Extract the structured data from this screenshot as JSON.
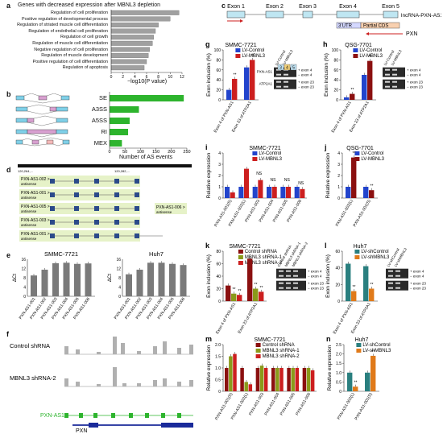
{
  "panel_a": {
    "label": "a",
    "title": "Genes with decreased expression after MBNL3 depletion",
    "xlabel": "−log10(P value)",
    "ticks": [
      "0",
      "2",
      "4",
      "6",
      "8",
      "10",
      "12"
    ],
    "terms": [
      "Regulation of cell proliferation",
      "Positive regulation of developmental process",
      "Regulation of striated muscle cell differentiation",
      "Regulation of endothelial cell proliferation",
      "Regulation of cell growth",
      "Regulation of muscle cell differentiation",
      "Negative regulation of cell proliferation",
      "Regulation of muscle development",
      "Positive regulation of cell differentiation",
      "Regulation of apoptosis"
    ]
  },
  "panel_b": {
    "label": "b",
    "xlabel": "Number of AS events",
    "ticks": [
      "0",
      "50",
      "100",
      "150",
      "200",
      "250"
    ],
    "events": [
      "SE",
      "A3SS",
      "A5SS",
      "RI",
      "MEX"
    ]
  },
  "panel_c": {
    "label": "c",
    "exons": [
      "Exon 1",
      "Exon 2",
      "Exon 3",
      "Exon 4",
      "Exon 5"
    ],
    "lnc": "lncRNA-PXN-AS1",
    "utr": "3’UTR",
    "cds": "Partial CDS",
    "gene": "PXN"
  },
  "panel_d": {
    "label": "d",
    "coords": [
      "120,264,...",
      "120,282,..."
    ],
    "transcripts": [
      "PXN-AS1-002 >",
      "PXN-AS1-001 >",
      "PXN-AS1-005 >",
      "PXN-AS1-003 >",
      "PXN-AS1-001 >"
    ],
    "sub": "antisense",
    "right_transcript": "PXN-AS1-006 >"
  },
  "panel_e": {
    "label": "e",
    "ylabel": "ΔCt",
    "yticks": [
      "0",
      "4",
      "8",
      "12",
      "16"
    ],
    "left_title": "SMMC-7721",
    "right_title": "Huh7",
    "categories": [
      "PXN-AS1-001",
      "PXN-AS1-002",
      "PXN-AS1-003",
      "PXN-AS1-004",
      "PXN-AS1-005",
      "PXN-AS1-006"
    ]
  },
  "panel_f": {
    "label": "f",
    "tracks": [
      "Control shRNA",
      "MBNL3 shRNA-2"
    ],
    "gene_top": "PXN-AS1",
    "gene_bottom": "PXN"
  },
  "panel_g": {
    "label": "g",
    "title": "SMMC-7721",
    "ylabel": "Exon inclusion (%)",
    "yticks": [
      "0",
      "20",
      "40",
      "60",
      "80",
      "100"
    ],
    "legend": [
      "LV-Control",
      "LV-MBNL3"
    ],
    "categories": [
      "Exon 4 of PXN-AS1",
      "Exon 23 of ATP2A1"
    ],
    "gel_cols": [
      "LV-Control",
      "LV-MBNL3"
    ],
    "gel_rows": [
      "PXN-AS1",
      "ATP2A1"
    ],
    "gel_marks": [
      "+ exon 4",
      "− exon 4",
      "+ exon 23",
      "− exon 23"
    ],
    "exon_box": [
      "3",
      "4",
      "5"
    ]
  },
  "panel_h": {
    "label": "h",
    "title": "QSG-7701",
    "ylabel": "Exon inclusion (%)",
    "yticks": [
      "0",
      "20",
      "40",
      "60",
      "80",
      "100"
    ],
    "legend": [
      "LV-Control",
      "LV-MBNL3"
    ],
    "categories": [
      "Exon 4 of PXN-AS1",
      "Exon 23 of ATP2A1"
    ],
    "gel_cols": [
      "LV-Control",
      "LV-MBNL3"
    ],
    "gel_marks": [
      "+ exon 4",
      "− exon 4",
      "+ exon 23",
      "− exon 23"
    ]
  },
  "panel_i": {
    "label": "i",
    "title": "SMMC-7721",
    "ylabel": "Relative expression",
    "yticks": [
      "0",
      "1",
      "2",
      "3",
      "4"
    ],
    "legend": [
      "LV-Control",
      "LV-MBNL3"
    ],
    "categories": [
      "PXN-AS1-001(S)",
      "PXN-AS1-002(L)",
      "PXN-AS1-003",
      "PXN-AS1-004",
      "PXN-AS1-005",
      "PXN-AS1-006"
    ],
    "ns": [
      "NS",
      "NS",
      "NS",
      "NS"
    ]
  },
  "panel_j": {
    "label": "j",
    "title": "QSG-7701",
    "ylabel": "Relative expression",
    "yticks": [
      "0",
      "1",
      "2",
      "3",
      "4"
    ],
    "legend": [
      "LV-Control",
      "LV-MBNL3"
    ],
    "categories": [
      "PXN-AS1-002(L)",
      "PXN-AS1-001(S)"
    ]
  },
  "panel_k": {
    "label": "k",
    "title": "SMMC-7721",
    "ylabel": "Exon inclusion (%)",
    "yticks": [
      "0",
      "20",
      "40",
      "60",
      "80"
    ],
    "legend": [
      "Control shRNA",
      "MBNL3 shRNA-1",
      "MBNL3 shRNA-2"
    ],
    "categories": [
      "Exon 4 of PXN-AS1",
      "Exon 23 of ATP2A1"
    ],
    "gel_cols": [
      "Control shRNA",
      "MBNL3 shRNA-1",
      "MBNL3 shRNA-2"
    ],
    "gel_marks": [
      "+ exon 4",
      "− exon 4",
      "+ exon 23",
      "− exon 23"
    ]
  },
  "panel_l": {
    "label": "l",
    "title": "Huh7",
    "ylabel": "Exon inclusion (%)",
    "yticks": [
      "0",
      "20",
      "40",
      "60"
    ],
    "legend": [
      "LV-shControl",
      "LV-shMBNL3"
    ],
    "categories": [
      "Exon 4 of PXN-AS1",
      "Exon 23 of ATP2A1"
    ],
    "gel_cols": [
      "LV-shControl",
      "LV-shMBNL3"
    ],
    "gel_marks": [
      "+ exon 4",
      "− exon 4",
      "+ exon 23",
      "− exon 23"
    ]
  },
  "panel_m": {
    "label": "m",
    "title": "SMMC-7721",
    "ylabel": "Relative expression",
    "yticks": [
      "0",
      "0.5",
      "1.0",
      "1.5",
      "2.0"
    ],
    "legend": [
      "Control shRNA",
      "MBNL3 shRNA-1",
      "MBNL3 shRNA-2"
    ],
    "categories": [
      "PXN-AS1-001(S)",
      "PXN-AS1-002(L)",
      "PXN-AS1-003",
      "PXN-AS1-004",
      "PXN-AS1-005",
      "PXN-AS1-006"
    ]
  },
  "panel_n": {
    "label": "n",
    "title": "Huh7",
    "ylabel": "Relative expression",
    "yticks": [
      "0",
      "0.5",
      "1.0",
      "1.5",
      "2.0",
      "2.5"
    ],
    "legend": [
      "LV-shControl",
      "LV-shMBNL3"
    ],
    "categories": [
      "PXN-AS1-002(L)",
      "PXN-AS1-001(S)"
    ]
  },
  "colors": {
    "grey_bar": "#a0a0a0",
    "green": "#2db42d",
    "blue": "#2244cc",
    "red": "#cc1f1f",
    "darkred": "#8b1010",
    "olive": "#8a9a1a",
    "teal": "#2a7f7f",
    "orange": "#e07a1a"
  },
  "chart_data": [
    {
      "type": "bar",
      "categories": [
        "Regulation of cell proliferation",
        "Positive regulation of developmental process",
        "Regulation of striated muscle cell differentiation",
        "Regulation of endothelial cell proliferation",
        "Regulation of cell growth",
        "Regulation of muscle cell differentiation",
        "Negative regulation of cell proliferation",
        "Regulation of muscle development",
        "Positive regulation of cell differentiation",
        "Regulation of apoptosis"
      ],
      "values": [
        11.5,
        10,
        8,
        7.5,
        7.2,
        7,
        6.5,
        6.3,
        6,
        5.6
      ],
      "xlim": [
        0,
        12
      ]
    },
    {
      "type": "bar",
      "categories": [
        "SE",
        "A3SS",
        "A5SS",
        "RI",
        "MEX"
      ],
      "values": [
        240,
        95,
        65,
        60,
        40
      ],
      "xlim": [
        0,
        250
      ]
    },
    {
      "type": "bar",
      "categories": [
        "PXN-AS1-001",
        "PXN-AS1-002",
        "PXN-AS1-003",
        "PXN-AS1-004",
        "PXN-AS1-005",
        "PXN-AS1-006"
      ],
      "series": [
        {
          "values": [
            9,
            11.5,
            14.3,
            14.5,
            14,
            14.2
          ]
        },
        {
          "values": [
            9.5,
            11.5,
            14.5,
            14.5,
            14,
            13.5
          ]
        }
      ],
      "ylim": [
        0,
        16
      ]
    },
    {
      "type": "bar",
      "categories": [
        "Exon 4 of PXN-AS1",
        "Exon 23 of ATP2A1"
      ],
      "series": [
        {
          "name": "LV-Control",
          "values": [
            20,
            65
          ]
        },
        {
          "name": "LV-MBNL3",
          "values": [
            42,
            80
          ]
        }
      ],
      "ylim": [
        0,
        100
      ]
    },
    {
      "type": "bar",
      "categories": [
        "Exon 4 of PXN-AS1",
        "Exon 23 of ATP2A1"
      ],
      "series": [
        {
          "name": "LV-Control",
          "values": [
            5,
            50
          ]
        },
        {
          "name": "LV-MBNL3",
          "values": [
            12,
            78
          ]
        }
      ],
      "ylim": [
        0,
        100
      ]
    },
    {
      "type": "bar",
      "categories": [
        "PXN-AS1-001(S)",
        "PXN-AS1-002(L)",
        "PXN-AS1-003",
        "PXN-AS1-004",
        "PXN-AS1-005",
        "PXN-AS1-006"
      ],
      "series": [
        {
          "name": "LV-Control",
          "values": [
            1,
            1,
            1,
            1,
            1,
            1
          ]
        },
        {
          "name": "LV-MBNL3",
          "values": [
            0.5,
            2.6,
            1.6,
            1.0,
            1.0,
            0.8
          ]
        }
      ],
      "ylim": [
        0,
        4
      ]
    },
    {
      "type": "bar",
      "categories": [
        "PXN-AS1-002(L)",
        "PXN-AS1-001(S)"
      ],
      "series": [
        {
          "name": "LV-Control",
          "values": [
            1,
            1
          ]
        },
        {
          "name": "LV-MBNL3",
          "values": [
            3.6,
            0.7
          ]
        }
      ],
      "ylim": [
        0,
        4
      ]
    },
    {
      "type": "bar",
      "categories": [
        "Exon 4 of PXN-AS1",
        "Exon 23 of ATP2A1"
      ],
      "series": [
        {
          "name": "Control shRNA",
          "values": [
            25,
            68
          ]
        },
        {
          "name": "MBNL3 shRNA-1",
          "values": [
            12,
            20
          ]
        },
        {
          "name": "MBNL3 shRNA-2",
          "values": [
            10,
            15
          ]
        }
      ],
      "ylim": [
        0,
        80
      ]
    },
    {
      "type": "bar",
      "categories": [
        "Exon 4 of PXN-AS1",
        "Exon 23 of ATP2A1"
      ],
      "series": [
        {
          "name": "LV-shControl",
          "values": [
            45,
            42
          ]
        },
        {
          "name": "LV-shMBNL3",
          "values": [
            12,
            15
          ]
        }
      ],
      "ylim": [
        0,
        60
      ]
    },
    {
      "type": "bar",
      "categories": [
        "PXN-AS1-001(S)",
        "PXN-AS1-002(L)",
        "PXN-AS1-003",
        "PXN-AS1-004",
        "PXN-AS1-005",
        "PXN-AS1-006"
      ],
      "series": [
        {
          "name": "Control shRNA",
          "values": [
            1,
            1,
            1,
            1,
            1,
            1
          ]
        },
        {
          "name": "MBNL3 shRNA-1",
          "values": [
            1.5,
            0.4,
            1.1,
            1.0,
            1.0,
            1.0
          ]
        },
        {
          "name": "MBNL3 shRNA-2",
          "values": [
            1.6,
            0.3,
            1.0,
            1.0,
            1.0,
            0.9
          ]
        }
      ],
      "ylim": [
        0,
        2
      ]
    },
    {
      "type": "bar",
      "categories": [
        "PXN-AS1-002(L)",
        "PXN-AS1-001(S)"
      ],
      "series": [
        {
          "name": "LV-shControl",
          "values": [
            1,
            1
          ]
        },
        {
          "name": "LV-shMBNL3",
          "values": [
            0.25,
            1.9
          ]
        }
      ],
      "ylim": [
        0,
        2.5
      ]
    }
  ]
}
